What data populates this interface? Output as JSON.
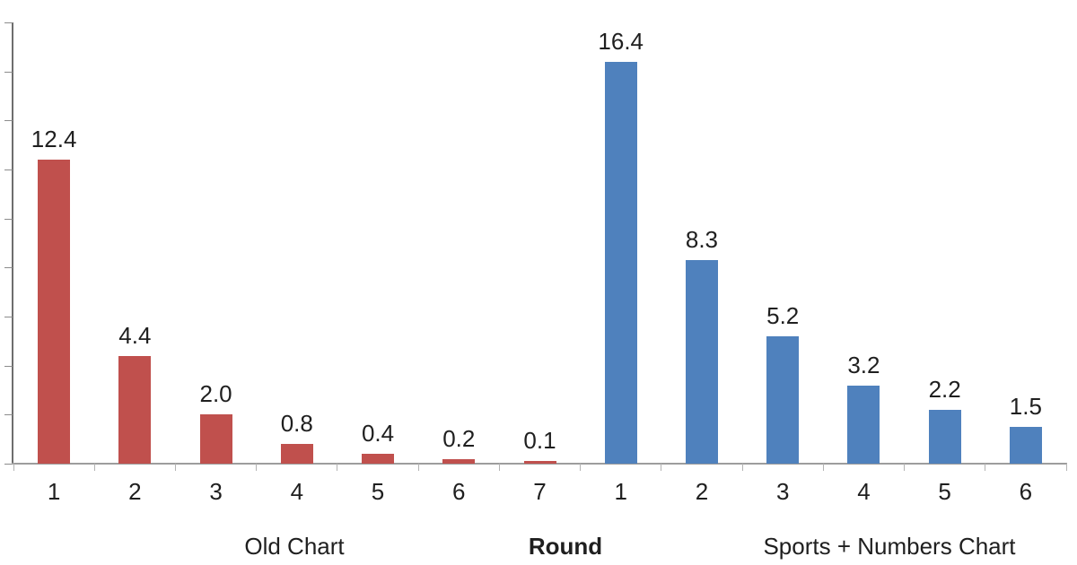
{
  "chart_data": {
    "type": "bar",
    "title": "",
    "xlabel": "Round",
    "ylabel": "",
    "ylim": [
      0,
      18
    ],
    "y_tick_step": 2,
    "y_tick_labels_shown": false,
    "grid": false,
    "legend": "none",
    "value_label_format": "one_decimal",
    "groups": [
      {
        "label": "Old Chart",
        "color": "#C0504D",
        "categories": [
          "1",
          "2",
          "3",
          "4",
          "5",
          "6",
          "7"
        ],
        "values": [
          12.4,
          4.4,
          2.0,
          0.8,
          0.4,
          0.2,
          0.1
        ]
      },
      {
        "label": "Sports + Numbers Chart",
        "color": "#4F81BD",
        "categories": [
          "1",
          "2",
          "3",
          "4",
          "5",
          "6"
        ],
        "values": [
          16.4,
          8.3,
          5.2,
          3.2,
          2.2,
          1.5
        ]
      }
    ],
    "axis_colors": {
      "y_axis": "#6e6e6e",
      "x_axis": "#9d9d9d",
      "ticks": "#b3b3b3"
    },
    "text_color": "#1f1f1f"
  }
}
